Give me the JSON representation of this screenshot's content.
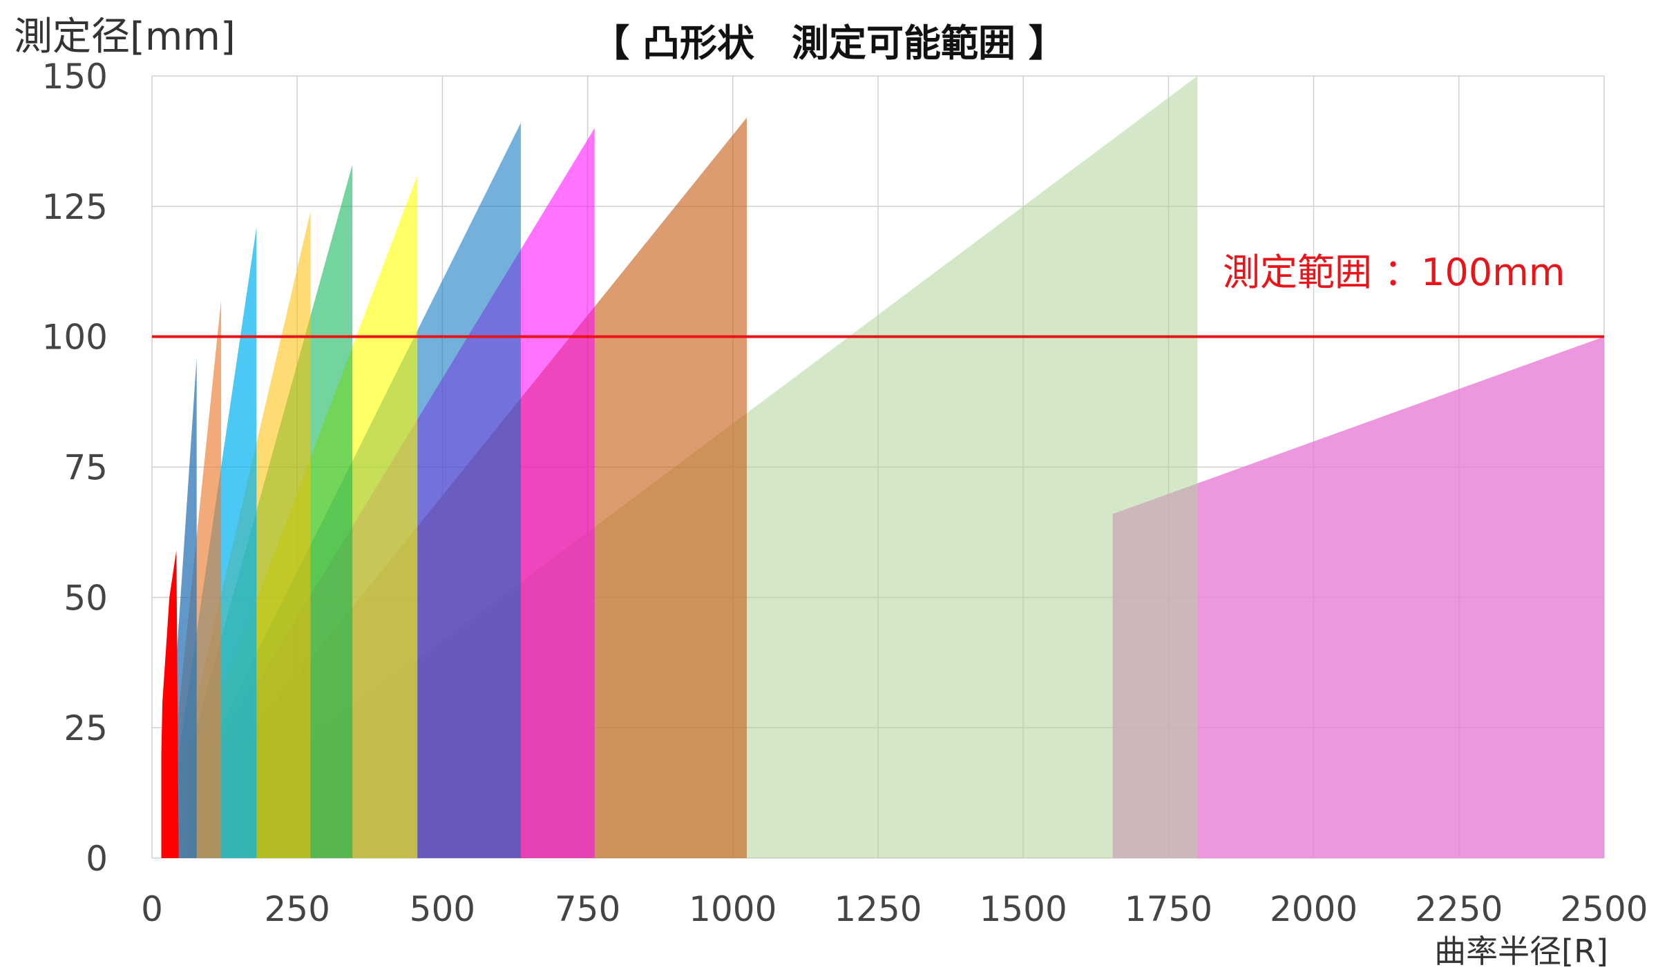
{
  "chart_data": {
    "type": "area",
    "title": "【 凸形状　測定可能範囲 】",
    "ylabel": "測定径[mm]",
    "xlabel": "曲率半径[R]",
    "xlim": [
      0,
      2500
    ],
    "ylim": [
      0,
      150
    ],
    "x_ticks": [
      "0",
      "250",
      "500",
      "750",
      "1000",
      "1250",
      "1500",
      "1750",
      "2000",
      "2250",
      "2500"
    ],
    "y_ticks": [
      "0",
      "25",
      "50",
      "75",
      "100",
      "125",
      "150"
    ],
    "grid": true,
    "legend": "none",
    "reference_line": {
      "y": 100,
      "color": "#e8141a"
    },
    "annotation": "測定範囲 ：100mm",
    "series": [
      {
        "color": "#ffae80",
        "opacity": 0.55,
        "points": [
          [
            1654,
            0
          ],
          [
            1654,
            66
          ],
          [
            2500,
            100
          ],
          [
            2500,
            0
          ]
        ]
      },
      {
        "color": "#dd66ff",
        "opacity": 0.55,
        "points": [
          [
            1654,
            0
          ],
          [
            1654,
            66
          ],
          [
            2500,
            100
          ],
          [
            2500,
            0
          ]
        ]
      },
      {
        "color": "#b3d39c",
        "opacity": 0.55,
        "points": [
          [
            240,
            0
          ],
          [
            240,
            20
          ],
          [
            1800,
            150
          ],
          [
            1800,
            0
          ]
        ]
      },
      {
        "color": "#c55a11",
        "opacity": 0.6,
        "points": [
          [
            142,
            0
          ],
          [
            142,
            20
          ],
          [
            1024,
            142
          ],
          [
            1024,
            0
          ]
        ]
      },
      {
        "color": "#ff00ff",
        "opacity": 0.55,
        "points": [
          [
            107,
            0
          ],
          [
            107,
            20
          ],
          [
            762,
            140
          ],
          [
            762,
            0
          ]
        ]
      },
      {
        "color": "#0070c0",
        "opacity": 0.55,
        "points": [
          [
            94,
            0
          ],
          [
            94,
            20
          ],
          [
            635,
            141
          ],
          [
            635,
            0
          ]
        ]
      },
      {
        "color": "#ffff00",
        "opacity": 0.6,
        "points": [
          [
            80,
            0
          ],
          [
            80,
            20
          ],
          [
            457,
            131
          ],
          [
            457,
            0
          ]
        ]
      },
      {
        "color": "#00b050",
        "opacity": 0.55,
        "points": [
          [
            64,
            0
          ],
          [
            64,
            20
          ],
          [
            345,
            133
          ],
          [
            345,
            0
          ]
        ]
      },
      {
        "color": "#ffc000",
        "opacity": 0.55,
        "points": [
          [
            55,
            0
          ],
          [
            55,
            20
          ],
          [
            273,
            124
          ],
          [
            273,
            0
          ]
        ]
      },
      {
        "color": "#00b0f0",
        "opacity": 0.7,
        "points": [
          [
            46,
            0
          ],
          [
            46,
            20
          ],
          [
            180,
            121
          ],
          [
            180,
            0
          ]
        ]
      },
      {
        "color": "#ed7d31",
        "opacity": 0.65,
        "points": [
          [
            38,
            0
          ],
          [
            38,
            20
          ],
          [
            119,
            107
          ],
          [
            119,
            0
          ]
        ]
      },
      {
        "color": "#2e75b6",
        "opacity": 0.75,
        "points": [
          [
            31,
            0
          ],
          [
            31,
            20
          ],
          [
            77,
            96
          ],
          [
            77,
            0
          ]
        ]
      },
      {
        "color": "#ff0000",
        "opacity": 1.0,
        "points": [
          [
            16,
            0
          ],
          [
            16,
            20
          ],
          [
            18,
            30
          ],
          [
            24,
            40
          ],
          [
            30,
            50
          ],
          [
            42,
            59
          ],
          [
            46,
            0
          ]
        ]
      }
    ]
  }
}
